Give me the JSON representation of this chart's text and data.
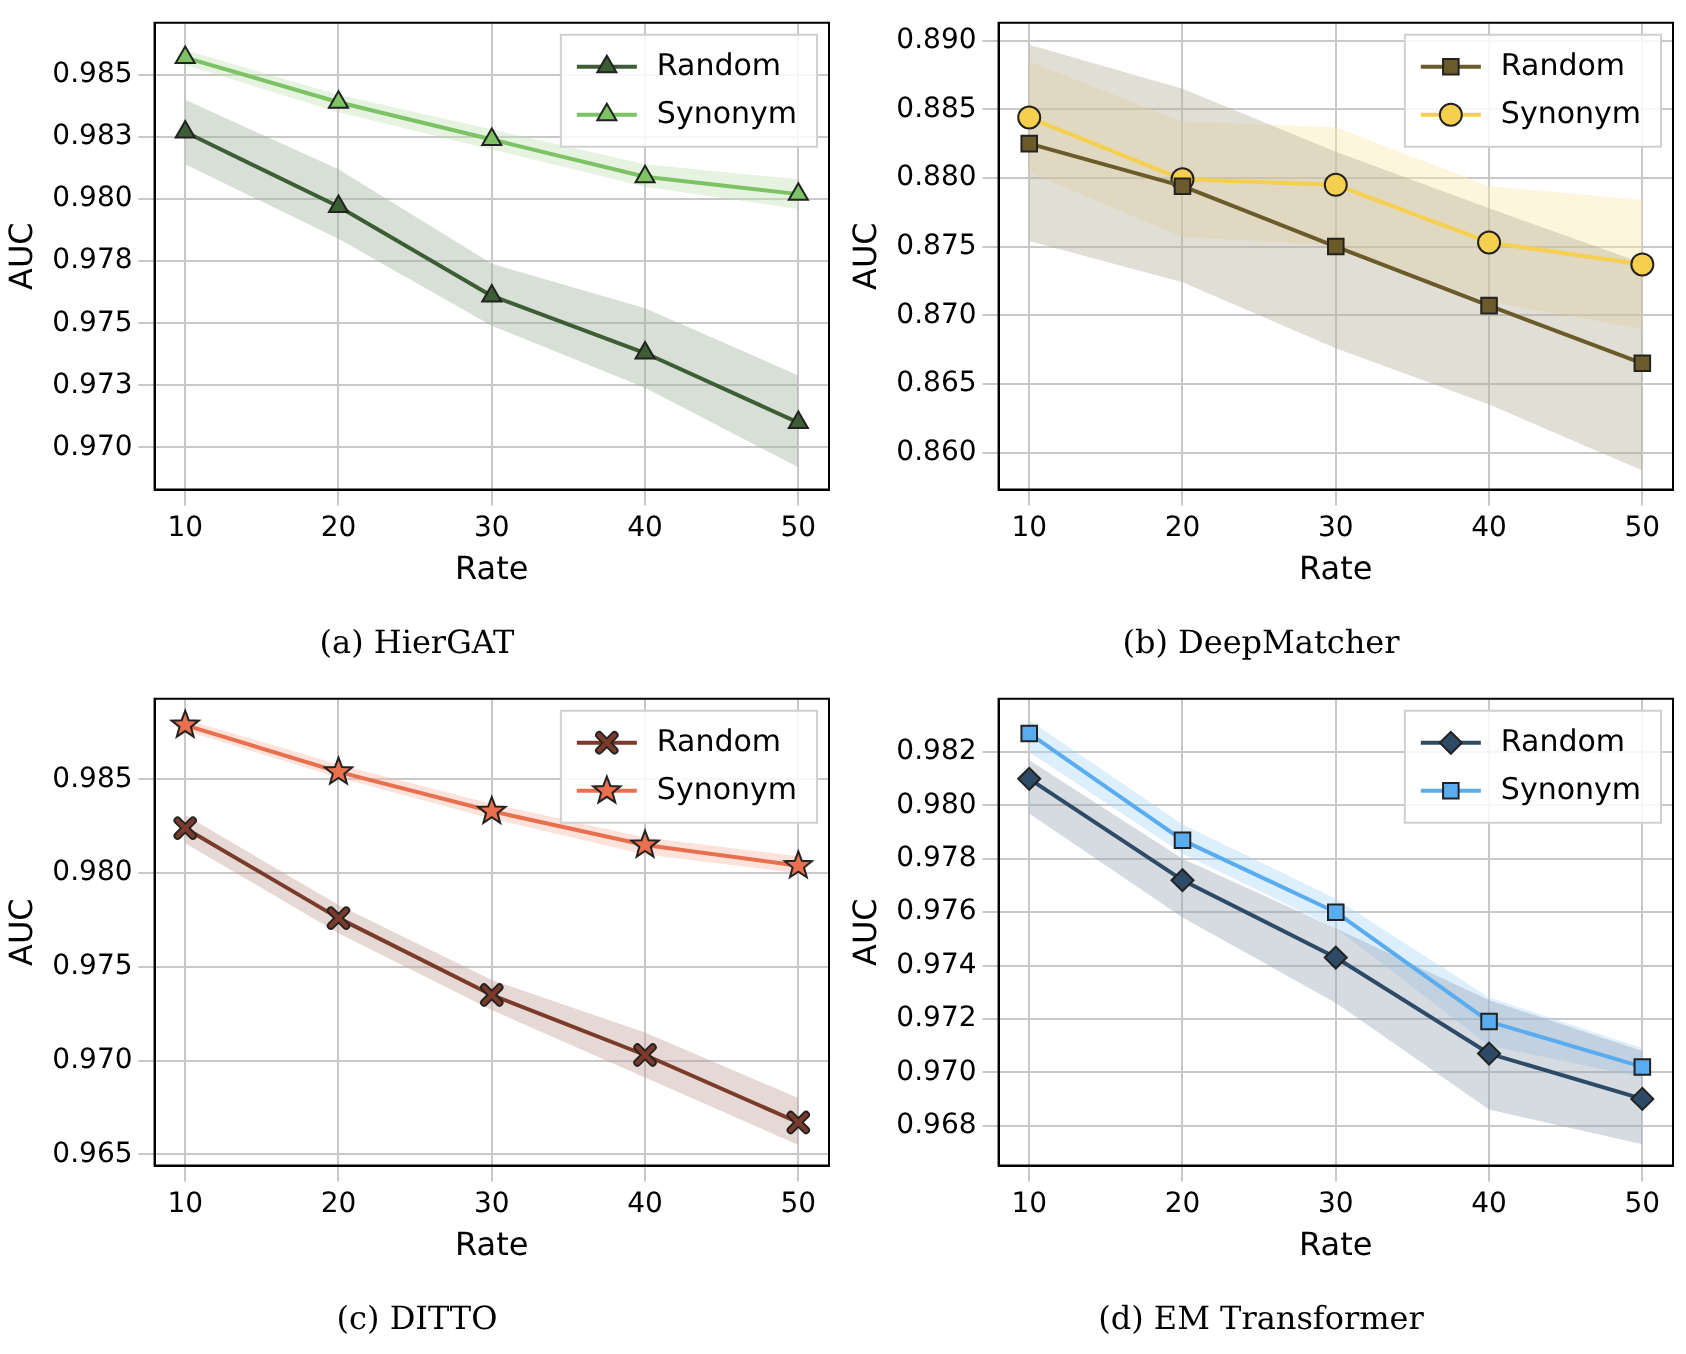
{
  "chart_data": [
    {
      "type": "line",
      "title": "(a) HierGAT",
      "xlabel": "Rate",
      "ylabel": "AUC",
      "x": [
        10,
        20,
        30,
        40,
        50
      ],
      "xlim": [
        8,
        52
      ],
      "xticks": [
        10,
        20,
        30,
        40,
        50
      ],
      "ylim": [
        0.9683,
        0.9871
      ],
      "yticks": [
        {
          "value": 0.97,
          "label": "0.970"
        },
        {
          "value": 0.9725,
          "label": "0.973"
        },
        {
          "value": 0.975,
          "label": "0.975"
        },
        {
          "value": 0.9775,
          "label": "0.978"
        },
        {
          "value": 0.98,
          "label": "0.980"
        },
        {
          "value": 0.9825,
          "label": "0.983"
        },
        {
          "value": 0.985,
          "label": "0.985"
        }
      ],
      "grid": true,
      "legend": "top right",
      "line_style": "solid",
      "series": [
        {
          "name": "Random",
          "color": "#3d5e35",
          "marker": "triangle",
          "values": [
            0.9827,
            0.9797,
            0.9761,
            0.9738,
            0.971
          ],
          "lower": [
            0.9814,
            0.9784,
            0.9749,
            0.9724,
            0.9692
          ],
          "upper": [
            0.984,
            0.9812,
            0.9774,
            0.9756,
            0.9729
          ]
        },
        {
          "name": "Synonym",
          "color": "#7dc264",
          "marker": "triangle",
          "values": [
            0.9857,
            0.9839,
            0.9824,
            0.9809,
            0.9802
          ],
          "lower": [
            0.9854,
            0.9835,
            0.982,
            0.9805,
            0.9796
          ],
          "upper": [
            0.986,
            0.9842,
            0.9828,
            0.9814,
            0.9808
          ]
        }
      ]
    },
    {
      "type": "line",
      "title": "(b) DeepMatcher",
      "xlabel": "Rate",
      "ylabel": "AUC",
      "x": [
        10,
        20,
        30,
        40,
        50
      ],
      "xlim": [
        8,
        52
      ],
      "xticks": [
        10,
        20,
        30,
        40,
        50
      ],
      "ylim": [
        0.8573,
        0.8913
      ],
      "yticks": [
        {
          "value": 0.86,
          "label": "0.860"
        },
        {
          "value": 0.865,
          "label": "0.865"
        },
        {
          "value": 0.87,
          "label": "0.870"
        },
        {
          "value": 0.875,
          "label": "0.875"
        },
        {
          "value": 0.88,
          "label": "0.880"
        },
        {
          "value": 0.885,
          "label": "0.885"
        },
        {
          "value": 0.89,
          "label": "0.890"
        }
      ],
      "grid": true,
      "legend": "top right",
      "line_style": "solid",
      "series": [
        {
          "name": "Random",
          "color": "#6b5a2a",
          "marker": "square",
          "values": [
            0.8825,
            0.8794,
            0.875,
            0.8707,
            0.8665
          ],
          "lower": [
            0.8754,
            0.8724,
            0.8676,
            0.8635,
            0.8587
          ],
          "upper": [
            0.8897,
            0.8865,
            0.8819,
            0.8778,
            0.8738
          ]
        },
        {
          "name": "Synonym",
          "color": "#f5cf4e",
          "marker": "circle",
          "values": [
            0.8844,
            0.8799,
            0.8795,
            0.8753,
            0.8737
          ],
          "lower": [
            0.8804,
            0.8757,
            0.8751,
            0.871,
            0.869
          ],
          "upper": [
            0.8885,
            0.8841,
            0.8837,
            0.8794,
            0.8784
          ]
        }
      ]
    },
    {
      "type": "line",
      "title": "(c) DITTO",
      "xlabel": "Rate",
      "ylabel": "AUC",
      "x": [
        10,
        20,
        30,
        40,
        50
      ],
      "xlim": [
        8,
        52
      ],
      "xticks": [
        10,
        20,
        30,
        40,
        50
      ],
      "ylim": [
        0.9644,
        0.9893
      ],
      "yticks": [
        {
          "value": 0.965,
          "label": "0.965"
        },
        {
          "value": 0.97,
          "label": "0.970"
        },
        {
          "value": 0.975,
          "label": "0.975"
        },
        {
          "value": 0.98,
          "label": "0.980"
        },
        {
          "value": 0.985,
          "label": "0.985"
        }
      ],
      "grid": true,
      "legend": "top right",
      "line_style": "solid",
      "series": [
        {
          "name": "Random",
          "color": "#7a3b2a",
          "marker": "cross",
          "values": [
            0.9824,
            0.9776,
            0.9735,
            0.9703,
            0.9667
          ],
          "lower": [
            0.9816,
            0.9768,
            0.9727,
            0.9691,
            0.9655
          ],
          "upper": [
            0.9831,
            0.9783,
            0.9743,
            0.9715,
            0.968
          ]
        },
        {
          "name": "Synonym",
          "color": "#e8704f",
          "marker": "star",
          "values": [
            0.9879,
            0.9854,
            0.9833,
            0.9815,
            0.9804
          ],
          "lower": [
            0.9876,
            0.9851,
            0.9829,
            0.981,
            0.98
          ],
          "upper": [
            0.9882,
            0.9858,
            0.9837,
            0.9819,
            0.9809
          ]
        }
      ]
    },
    {
      "type": "line",
      "title": "(d) EM Transformer",
      "xlabel": "Rate",
      "ylabel": "AUC",
      "x": [
        10,
        20,
        30,
        40,
        50
      ],
      "xlim": [
        8,
        52
      ],
      "xticks": [
        10,
        20,
        30,
        40,
        50
      ],
      "ylim": [
        0.9665,
        0.984
      ],
      "yticks": [
        {
          "value": 0.968,
          "label": "0.968"
        },
        {
          "value": 0.97,
          "label": "0.970"
        },
        {
          "value": 0.972,
          "label": "0.972"
        },
        {
          "value": 0.974,
          "label": "0.974"
        },
        {
          "value": 0.976,
          "label": "0.976"
        },
        {
          "value": 0.978,
          "label": "0.978"
        },
        {
          "value": 0.98,
          "label": "0.980"
        },
        {
          "value": 0.982,
          "label": "0.982"
        }
      ],
      "grid": true,
      "legend": "top right",
      "line_style": "solid",
      "series": [
        {
          "name": "Random",
          "color": "#2d4a66",
          "marker": "diamond",
          "values": [
            0.981,
            0.9772,
            0.9743,
            0.9707,
            0.969
          ],
          "lower": [
            0.9797,
            0.9758,
            0.9726,
            0.9686,
            0.9673
          ],
          "upper": [
            0.9817,
            0.978,
            0.9754,
            0.9727,
            0.9708
          ]
        },
        {
          "name": "Synonym",
          "color": "#5aacf0",
          "marker": "square",
          "values": [
            0.9827,
            0.9787,
            0.976,
            0.9719,
            0.9702
          ],
          "lower": [
            0.982,
            0.9782,
            0.9754,
            0.971,
            0.9698
          ],
          "upper": [
            0.9832,
            0.9793,
            0.9765,
            0.9728,
            0.9709
          ]
        }
      ]
    }
  ]
}
